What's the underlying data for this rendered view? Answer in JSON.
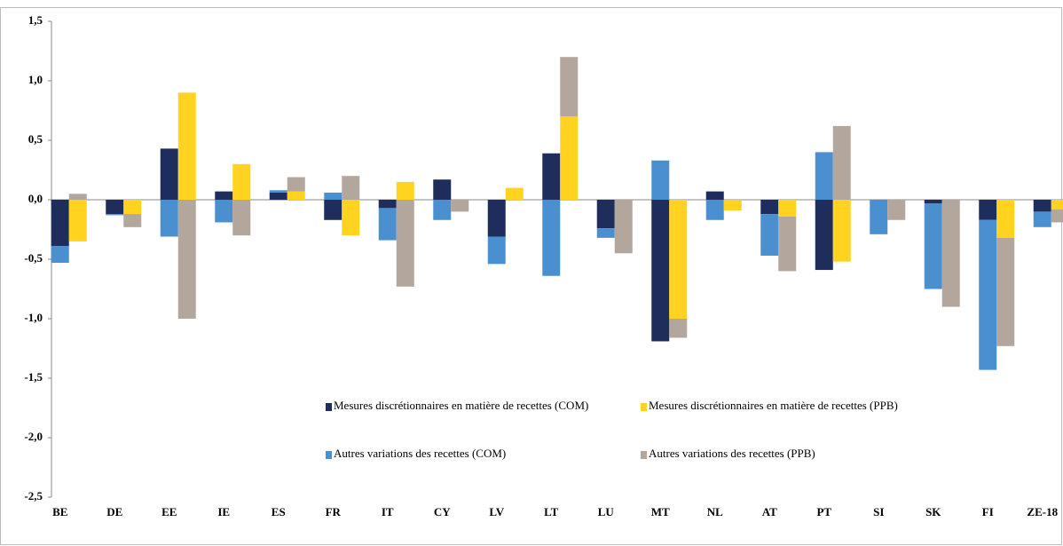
{
  "chart_data": {
    "type": "bar",
    "categories": [
      "BE",
      "DE",
      "EE",
      "IE",
      "ES",
      "FR",
      "IT",
      "CY",
      "LV",
      "LT",
      "LU",
      "MT",
      "NL",
      "AT",
      "PT",
      "SI",
      "SK",
      "FI",
      "ZE-18"
    ],
    "series": [
      {
        "name": "Mesures discrétionnaires en matière de recettes (COM)",
        "color": "#1f2d5c",
        "values": [
          -0.39,
          -0.12,
          0.43,
          0.07,
          0.06,
          -0.17,
          -0.07,
          0.17,
          -0.31,
          0.39,
          -0.24,
          -1.19,
          0.07,
          -0.12,
          -0.59,
          0,
          -0.03,
          -0.17,
          -0.1
        ]
      },
      {
        "name": "Mesures discrétionnaires en matière de recettes (PPB)",
        "color": "#ffd320",
        "values": [
          -0.35,
          -0.12,
          0.9,
          0.3,
          0.07,
          -0.3,
          0.15,
          0,
          0.1,
          0.7,
          0,
          -1.0,
          -0.09,
          -0.14,
          -0.52,
          0,
          0,
          -0.32,
          -0.08
        ]
      },
      {
        "name": "Autres variations des recettes (COM)",
        "color": "#4a90d0",
        "values": [
          -0.14,
          -0.01,
          -0.31,
          -0.19,
          0.02,
          0.06,
          -0.27,
          -0.17,
          -0.23,
          -0.64,
          -0.08,
          0.33,
          -0.17,
          -0.35,
          0.4,
          -0.29,
          -0.72,
          -1.26,
          -0.13
        ]
      },
      {
        "name": "Autres variations des recettes (PPB)",
        "color": "#b3a69c",
        "values": [
          0.05,
          -0.11,
          -1.0,
          -0.3,
          0.12,
          0.2,
          -0.73,
          -0.1,
          0,
          0.5,
          -0.45,
          -0.16,
          0,
          -0.46,
          0.62,
          -0.17,
          -0.9,
          -0.91,
          -0.11
        ]
      }
    ],
    "ylim": [
      -2.5,
      1.5
    ],
    "yticks": [
      {
        "value": 1.5,
        "label": "1,5"
      },
      {
        "value": 1.0,
        "label": "1,0"
      },
      {
        "value": 0.5,
        "label": "0,5"
      },
      {
        "value": 0.0,
        "label": "0,0"
      },
      {
        "value": -0.5,
        "label": "-0,5"
      },
      {
        "value": -1.0,
        "label": "-1,0"
      },
      {
        "value": -1.5,
        "label": "-1,5"
      },
      {
        "value": -2.0,
        "label": "-2,0"
      },
      {
        "value": -2.5,
        "label": "-2,5"
      }
    ],
    "grid": false
  }
}
